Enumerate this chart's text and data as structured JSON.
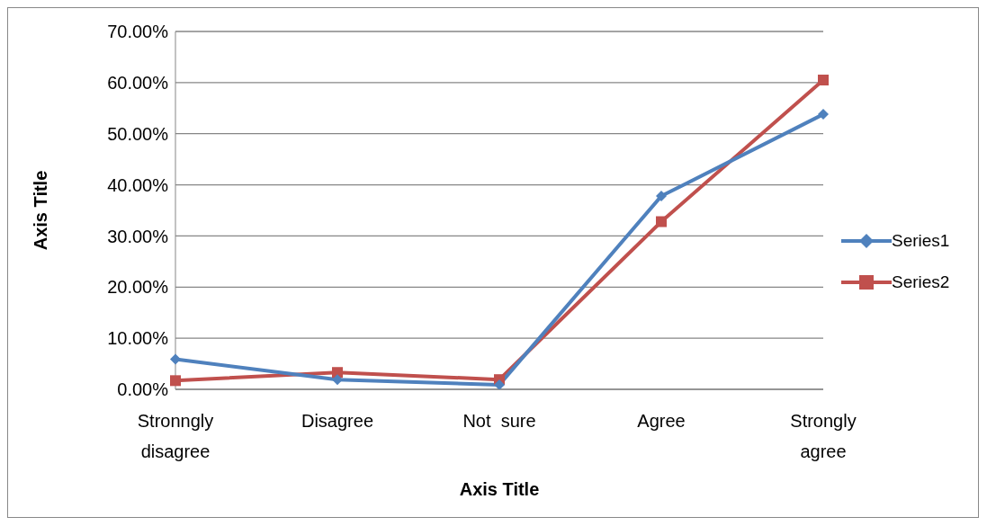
{
  "chart_data": {
    "type": "line",
    "xlabel": "Axis Title",
    "ylabel": "Axis Title",
    "categories": [
      "Stronngly disagree",
      "Disagree",
      "Not  sure",
      "Agree",
      "Strongly agree"
    ],
    "series": [
      {
        "name": "Series1",
        "color": "#4f81bd",
        "marker": "diamond",
        "values": [
          5.9,
          1.9,
          0.9,
          37.8,
          53.8
        ]
      },
      {
        "name": "Series2",
        "color": "#c0504d",
        "marker": "square",
        "values": [
          1.7,
          3.3,
          1.9,
          32.8,
          60.5
        ]
      }
    ],
    "ylim": [
      0,
      70
    ],
    "yticks": [
      {
        "value": 0,
        "label": "0.00%"
      },
      {
        "value": 10,
        "label": "10.00%"
      },
      {
        "value": 20,
        "label": "20.00%"
      },
      {
        "value": 30,
        "label": "30.00%"
      },
      {
        "value": 40,
        "label": "40.00%"
      },
      {
        "value": 50,
        "label": "50.00%"
      },
      {
        "value": 60,
        "label": "60.00%"
      },
      {
        "value": 70,
        "label": "70.00%"
      }
    ],
    "grid": "y",
    "legend": "right"
  }
}
